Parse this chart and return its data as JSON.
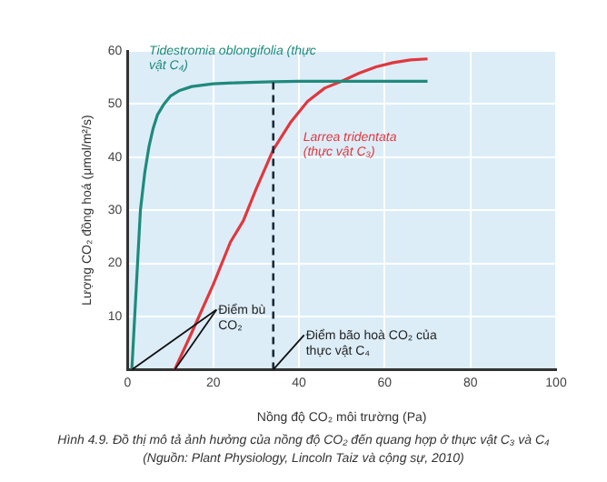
{
  "chart_data": {
    "type": "line",
    "title": "Hình 4.9. Đồ thị mô tả ảnh hưởng của nồng độ CO₂ đến quang hợp ở thực vật C₃ và C₄",
    "xlabel": "Nồng độ CO₂ môi trường (Pa)",
    "ylabel": "Lượng CO₂ đồng hoá (μmol/m²/s)",
    "xlim": [
      0,
      100
    ],
    "xticks": [
      0,
      20,
      40,
      60,
      80,
      100
    ],
    "ylim": [
      0,
      60
    ],
    "yticks": [
      {
        "value": 0,
        "label": null
      },
      10,
      20,
      30,
      40,
      50,
      60
    ],
    "grid": true,
    "legend": false,
    "marker": "none",
    "series": [
      {
        "name": "Tidestromia oblongifolia (thực vật C₄)",
        "color": "#1f8a7c",
        "x": [
          1,
          2,
          3,
          4,
          5,
          6,
          7,
          8.5,
          10,
          12,
          15,
          20,
          25,
          30,
          34,
          40,
          50,
          60,
          70
        ],
        "values": [
          0,
          15,
          30,
          37,
          42,
          45.5,
          48,
          50,
          51.5,
          52.5,
          53.3,
          53.8,
          54,
          54.1,
          54.2,
          54.3,
          54.3,
          54.3,
          54.3
        ]
      },
      {
        "name": "Larrea tridentata (thực vật C₃)",
        "color": "#e0383e",
        "x": [
          11,
          15,
          20,
          24,
          27,
          30,
          34,
          38,
          42,
          46,
          50,
          54,
          58,
          62,
          66,
          70
        ],
        "values": [
          0,
          7,
          16,
          24,
          28,
          34,
          41.4,
          46.5,
          50.5,
          53,
          54.3,
          55.8,
          57,
          57.8,
          58.3,
          58.5
        ]
      }
    ],
    "ref_lines": [
      {
        "axis": "x",
        "value": 34,
        "line_style": "dashed",
        "color": "#1a2a3a"
      }
    ],
    "annotations": [
      {
        "text": "Điểm bù CO₂",
        "x": 11,
        "y": 0
      },
      {
        "text": "Điểm bão hoà CO₂ của thực vật C₄",
        "x": 34,
        "y": 0
      },
      "(Nguồn: Plant Physiology, Lincoln Taiz và cộng sự, 2010)"
    ]
  }
}
